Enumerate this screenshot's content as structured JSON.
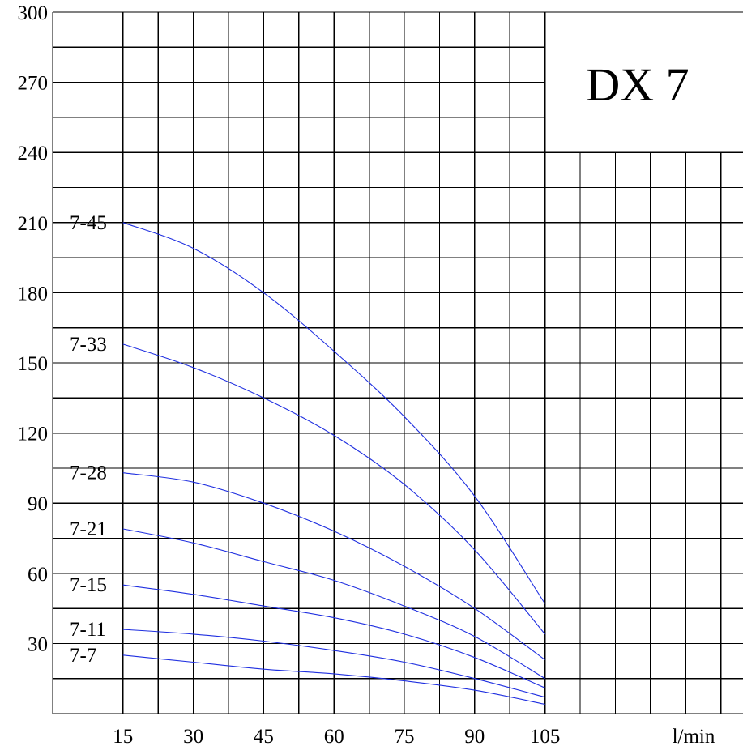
{
  "chart_data": {
    "type": "line",
    "title": "DX 7",
    "x_unit_label": "l/min",
    "xlabel": "",
    "ylabel": "",
    "xlim": [
      0,
      195
    ],
    "ylim": [
      0,
      300
    ],
    "x_ticks": [
      15,
      30,
      45,
      60,
      75,
      90,
      105
    ],
    "y_ticks": [
      30,
      60,
      90,
      120,
      150,
      180,
      210,
      240,
      270,
      300
    ],
    "grid": true,
    "legend": "none",
    "line_color": "#1f2fe0",
    "grid_color": "#000000",
    "series": [
      {
        "name": "7-45",
        "x": [
          15,
          30,
          45,
          60,
          75,
          90,
          105
        ],
        "y": [
          210,
          199,
          180,
          155,
          127,
          93,
          47
        ]
      },
      {
        "name": "7-33",
        "x": [
          15,
          30,
          45,
          60,
          75,
          90,
          105
        ],
        "y": [
          158,
          148,
          135,
          119,
          98,
          70,
          34
        ]
      },
      {
        "name": "7-28",
        "x": [
          15,
          30,
          45,
          60,
          75,
          90,
          105
        ],
        "y": [
          103,
          99,
          90,
          78,
          63,
          45,
          23
        ]
      },
      {
        "name": "7-21",
        "x": [
          15,
          30,
          45,
          60,
          75,
          90,
          105
        ],
        "y": [
          79,
          73,
          65,
          57,
          46,
          33,
          15
        ]
      },
      {
        "name": "7-15",
        "x": [
          15,
          30,
          45,
          60,
          75,
          90,
          105
        ],
        "y": [
          55,
          51,
          46,
          41,
          34,
          24,
          11
        ]
      },
      {
        "name": "7-11",
        "x": [
          15,
          30,
          45,
          60,
          75,
          90,
          105
        ],
        "y": [
          36,
          34,
          31,
          27,
          22,
          15,
          7
        ]
      },
      {
        "name": "7-7",
        "x": [
          15,
          30,
          45,
          60,
          75,
          90,
          105
        ],
        "y": [
          25,
          22,
          19,
          17,
          14,
          10,
          4
        ]
      }
    ]
  }
}
